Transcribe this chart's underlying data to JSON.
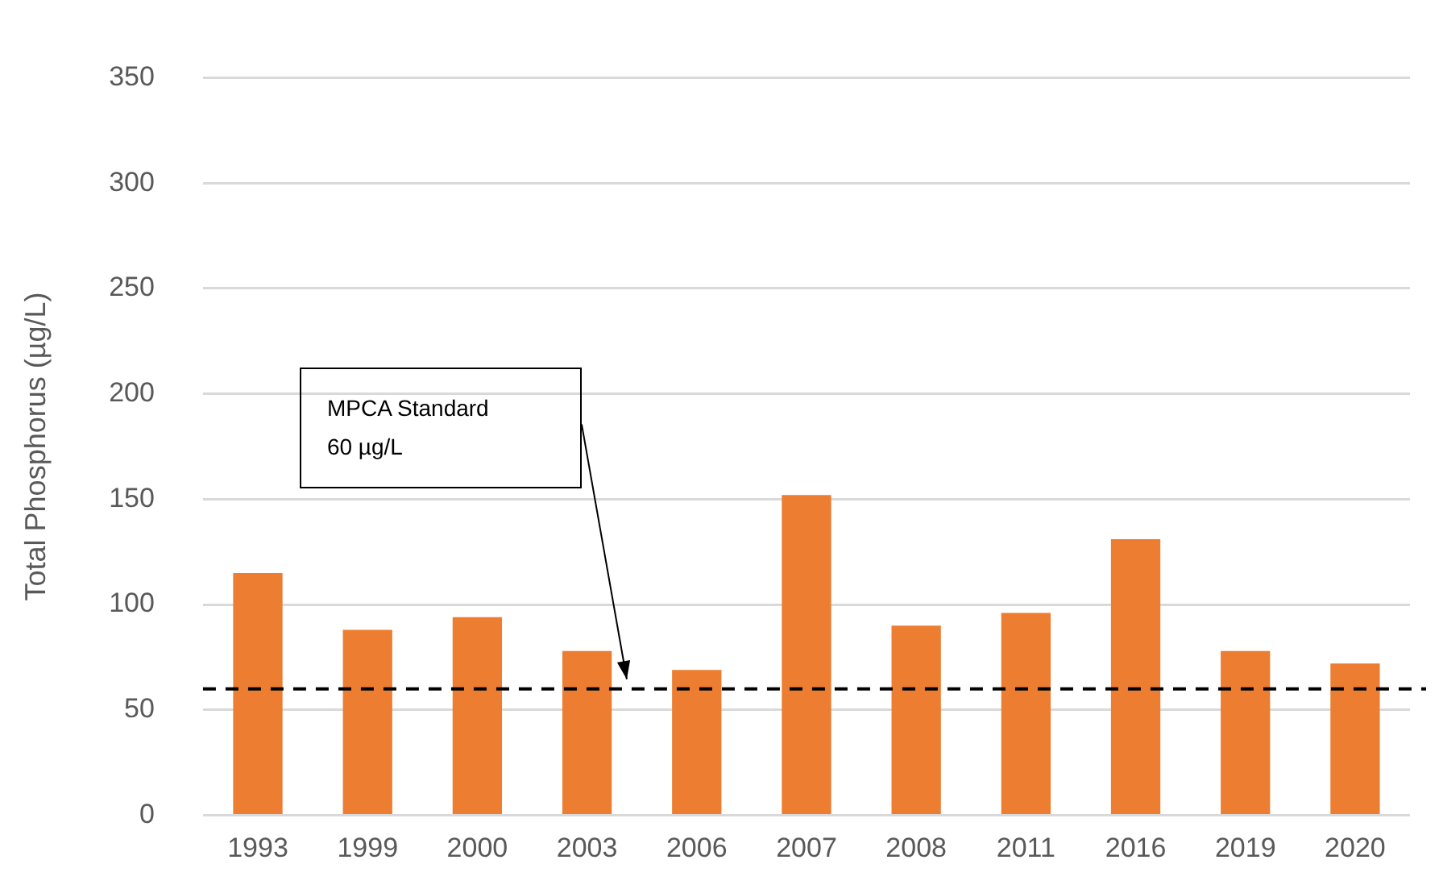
{
  "chart_data": {
    "type": "bar",
    "ylabel": "Total Phosphorus (µg/L)",
    "categories": [
      "1993",
      "1999",
      "2000",
      "2003",
      "2006",
      "2007",
      "2008",
      "2011",
      "2016",
      "2019",
      "2020"
    ],
    "values": [
      115,
      88,
      94,
      78,
      69,
      152,
      90,
      96,
      131,
      78,
      72
    ],
    "color": "#ed7d31",
    "ylim": [
      0,
      350
    ],
    "yticks": [
      0,
      50,
      100,
      150,
      200,
      250,
      300,
      350
    ],
    "grid": "y",
    "ref_lines": [
      {
        "axis": "y",
        "value": 60,
        "label": "MPCA Standard\n60 µg/L",
        "color": "#000000",
        "line_style": "dashed"
      }
    ]
  }
}
